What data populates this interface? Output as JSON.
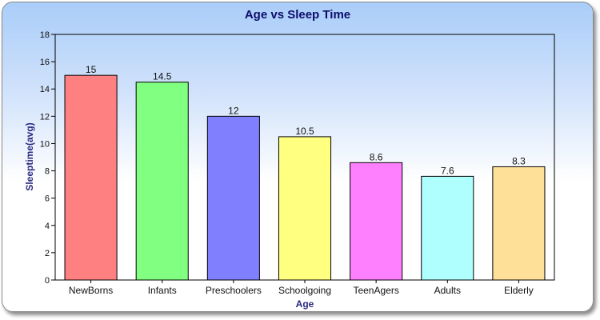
{
  "chart_data": {
    "type": "bar",
    "title": "Age vs Sleep Time",
    "xlabel": "Age",
    "ylabel": "Sleeptime(avg)",
    "categories": [
      "NewBorns",
      "Infants",
      "Preschoolers",
      "Schoolgoing",
      "TeenAgers",
      "Adults",
      "Elderly"
    ],
    "values": [
      15,
      14.5,
      12,
      10.5,
      8.6,
      7.6,
      8.3
    ],
    "data_labels": [
      "15",
      "14.5",
      "12",
      "10.5",
      "8.6",
      "7.6",
      "8.3"
    ],
    "bar_colors": [
      "#ff8080",
      "#80ff80",
      "#8080ff",
      "#ffff80",
      "#ff80ff",
      "#b0ffff",
      "#ffe099"
    ],
    "ylim": [
      0,
      18
    ],
    "yticks": [
      0,
      2,
      4,
      6,
      8,
      10,
      12,
      14,
      16,
      18
    ],
    "grid": false,
    "legend": "none"
  }
}
